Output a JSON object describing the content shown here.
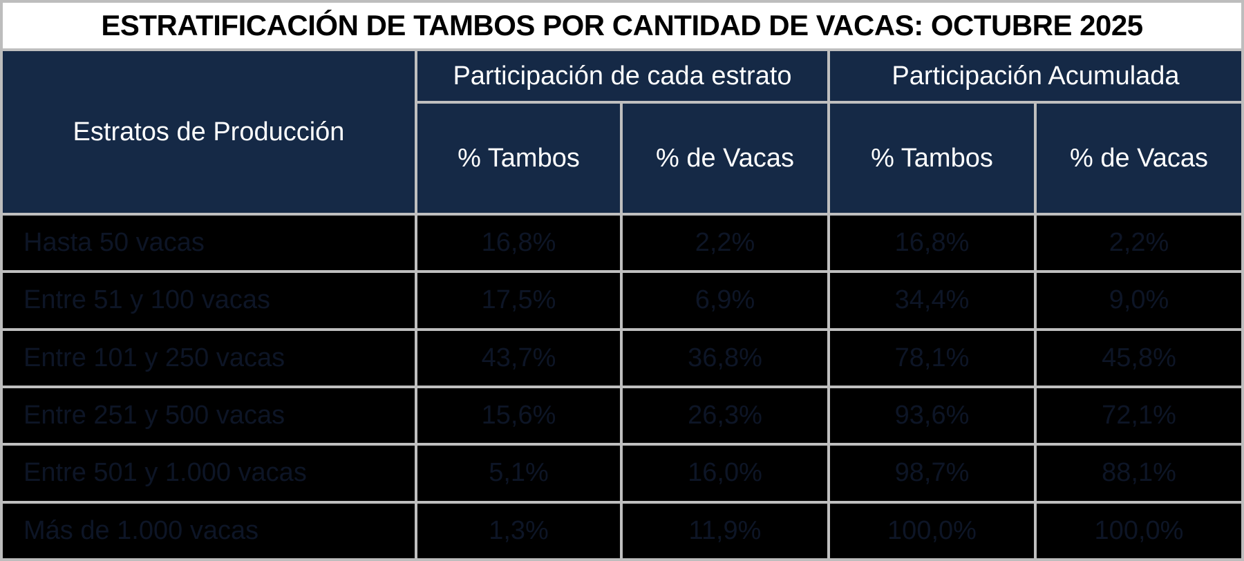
{
  "title": "ESTRATIFICACIÓN DE TAMBOS POR CANTIDAD DE VACAS: OCTUBRE 2025",
  "table": {
    "row_header_label": "Estratos de Producción",
    "groups": [
      {
        "label": "Participación de cada estrato",
        "columns": [
          "% Tambos",
          "% de Vacas"
        ]
      },
      {
        "label": "Participación Acumulada",
        "columns": [
          "% Tambos",
          "% de Vacas"
        ]
      }
    ],
    "rows": [
      {
        "label": "Hasta 50 vacas",
        "values": [
          "16,8%",
          "2,2%",
          "16,8%",
          "2,2%"
        ]
      },
      {
        "label": "Entre 51 y 100 vacas",
        "values": [
          "17,5%",
          "6,9%",
          "34,4%",
          "9,0%"
        ]
      },
      {
        "label": "Entre 101 y 250 vacas",
        "values": [
          "43,7%",
          "36,8%",
          "78,1%",
          "45,8%"
        ]
      },
      {
        "label": "Entre 251 y 500 vacas",
        "values": [
          "15,6%",
          "26,3%",
          "93,6%",
          "72,1%"
        ]
      },
      {
        "label": "Entre 501 y 1.000 vacas",
        "values": [
          "5,1%",
          "16,0%",
          "98,7%",
          "88,1%"
        ]
      },
      {
        "label": "Más de 1.000 vacas",
        "values": [
          "1,3%",
          "11,9%",
          "100,0%",
          "100,0%"
        ]
      }
    ]
  },
  "chart_data": {
    "type": "table",
    "title": "ESTRATIFICACIÓN DE TAMBOS POR CANTIDAD DE VACAS: OCTUBRE 2025",
    "categories": [
      "Hasta 50 vacas",
      "Entre 51 y 100 vacas",
      "Entre 101 y 250 vacas",
      "Entre 251 y 500 vacas",
      "Entre 501 y 1.000 vacas",
      "Más de 1.000 vacas"
    ],
    "series": [
      {
        "name": "Participación de cada estrato - % Tambos",
        "values": [
          16.8,
          17.5,
          43.7,
          15.6,
          5.1,
          1.3
        ]
      },
      {
        "name": "Participación de cada estrato - % de Vacas",
        "values": [
          2.2,
          6.9,
          36.8,
          26.3,
          16.0,
          11.9
        ]
      },
      {
        "name": "Participación Acumulada - % Tambos",
        "values": [
          16.8,
          34.4,
          78.1,
          93.6,
          98.7,
          100.0
        ]
      },
      {
        "name": "Participación Acumulada - % de Vacas",
        "values": [
          2.2,
          9.0,
          45.8,
          72.1,
          88.1,
          100.0
        ]
      }
    ]
  },
  "colors": {
    "title_bg": "#FFFFFF",
    "title_text": "#000000",
    "header_bg": "#152946",
    "header_text": "#FFFFFF",
    "data_bg": "#000000",
    "data_text": "#0D1526",
    "grid_border": "#BFBFBF"
  }
}
